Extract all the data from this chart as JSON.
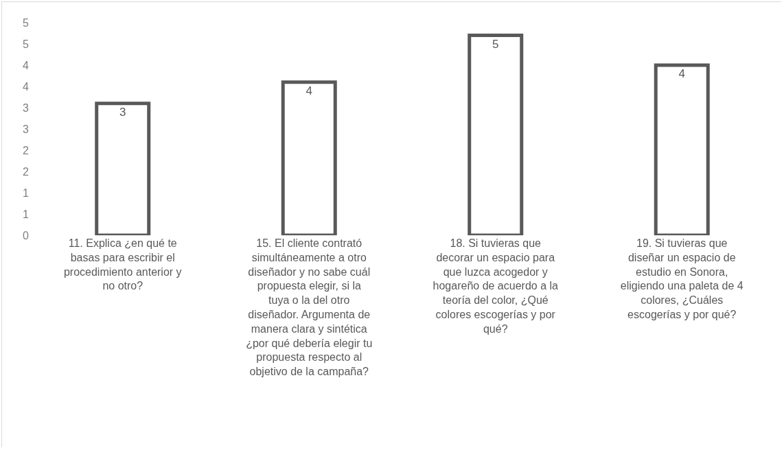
{
  "chart_data": {
    "type": "bar",
    "categories": [
      "11. Explica ¿en qué te basas para escribir el procedimiento anterior y no otro?",
      "15. El cliente contrató simultáneamente a otro diseñador y no sabe cuál propuesta elegir, si la tuya o la del otro diseñador. Argumenta de manera clara y sintética ¿por qué debería elegir tu propuesta respecto al objetivo de la campaña?",
      "18. Si tuvieras que decorar un espacio para que luzca acogedor y hogareño de acuerdo a la teoría del color, ¿Qué colores escogerías y por qué?",
      "19. Si tuvieras que diseñar un espacio de estudio en Sonora, eligiendo una paleta de 4 colores, ¿Cuáles escogerías y por qué?"
    ],
    "values": [
      3.1,
      3.6,
      4.7,
      4.0
    ],
    "value_labels": [
      "3",
      "4",
      "5",
      "4"
    ],
    "color": "#595959",
    "ylim": [
      0,
      5
    ],
    "yticks": [
      0,
      {
        "value": 0.5,
        "label": "1"
      },
      1,
      {
        "value": 1.5,
        "label": "2"
      },
      2,
      {
        "value": 2.5,
        "label": "3"
      },
      3,
      {
        "value": 3.5,
        "label": "4"
      },
      4,
      {
        "value": 4.5,
        "label": "5"
      },
      5
    ],
    "grid": false,
    "legend": false
  }
}
